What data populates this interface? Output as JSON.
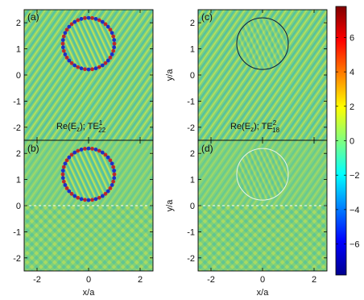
{
  "figure": {
    "colors": {
      "field_background": "#7fd07a",
      "circle_dark": "#0b1a3a",
      "circle_light": "#e9f5e9",
      "frame": "#000000"
    }
  },
  "chart_data": [
    {
      "type": "heatmap",
      "panel_label": "(a)",
      "annotation": "Re(E_z); TE^1_22",
      "annotation_parts": {
        "main": "Re(E",
        "sub1": "z",
        "mid": "); TE",
        "sup": "1",
        "sub2": "22"
      },
      "xlabel": "",
      "ylabel": "",
      "xlim": [
        -2.5,
        2.5
      ],
      "ylim": [
        -2.5,
        2.5
      ],
      "xticks": [],
      "yticks": [
        "-2",
        "-1",
        "0",
        "1",
        "2"
      ],
      "scatterer": {
        "center": [
          0,
          1.2
        ],
        "radius": 1.0,
        "mode_order": 22
      },
      "wave_direction": "diagonal"
    },
    {
      "type": "heatmap",
      "panel_label": "(c)",
      "annotation": "Re(E_z); TE^2_18",
      "annotation_parts": {
        "main": "Re(E",
        "sub1": "z",
        "mid": "); TE",
        "sup": "2",
        "sub2": "18"
      },
      "xlabel": "",
      "ylabel": "y/a",
      "xlim": [
        -2.5,
        2.5
      ],
      "ylim": [
        -2.5,
        2.5
      ],
      "xticks": [],
      "yticks": [
        "-2",
        "-1",
        "0",
        "1",
        "2"
      ],
      "scatterer": {
        "center": [
          0,
          1.2
        ],
        "radius": 1.0,
        "mode_order": 18
      },
      "wave_direction": "diagonal"
    },
    {
      "type": "heatmap",
      "panel_label": "(b)",
      "annotation": "",
      "xlabel": "x/a",
      "ylabel": "",
      "xlim": [
        -2.5,
        2.5
      ],
      "ylim": [
        -2.5,
        2.5
      ],
      "xticks": [
        "-2",
        "0",
        "2"
      ],
      "yticks": [
        "-2",
        "-1",
        "0",
        "1",
        "2"
      ],
      "scatterer": {
        "center": [
          0,
          1.2
        ],
        "radius": 1.0,
        "mode_order": 22
      },
      "interface_y": 0,
      "wave_direction": "diagonal"
    },
    {
      "type": "heatmap",
      "panel_label": "(d)",
      "annotation": "",
      "xlabel": "x/a",
      "ylabel": "y/a",
      "xlim": [
        -2.5,
        2.5
      ],
      "ylim": [
        -2.5,
        2.5
      ],
      "xticks": [
        "-2",
        "0",
        "2"
      ],
      "yticks": [
        "-2",
        "-1",
        "0",
        "1",
        "2"
      ],
      "scatterer": {
        "center": [
          0,
          1.2
        ],
        "radius": 1.0,
        "mode_order": 18
      },
      "interface_y": 0,
      "wave_direction": "diagonal"
    }
  ],
  "colorbar": {
    "range": [
      -7.8,
      7.8
    ],
    "ticks": [
      6,
      4,
      2,
      0,
      -2,
      -4,
      -6
    ],
    "tick_labels": [
      "6",
      "4",
      "2",
      "0",
      "−2",
      "−4",
      "−6"
    ],
    "colormap": "jet"
  }
}
